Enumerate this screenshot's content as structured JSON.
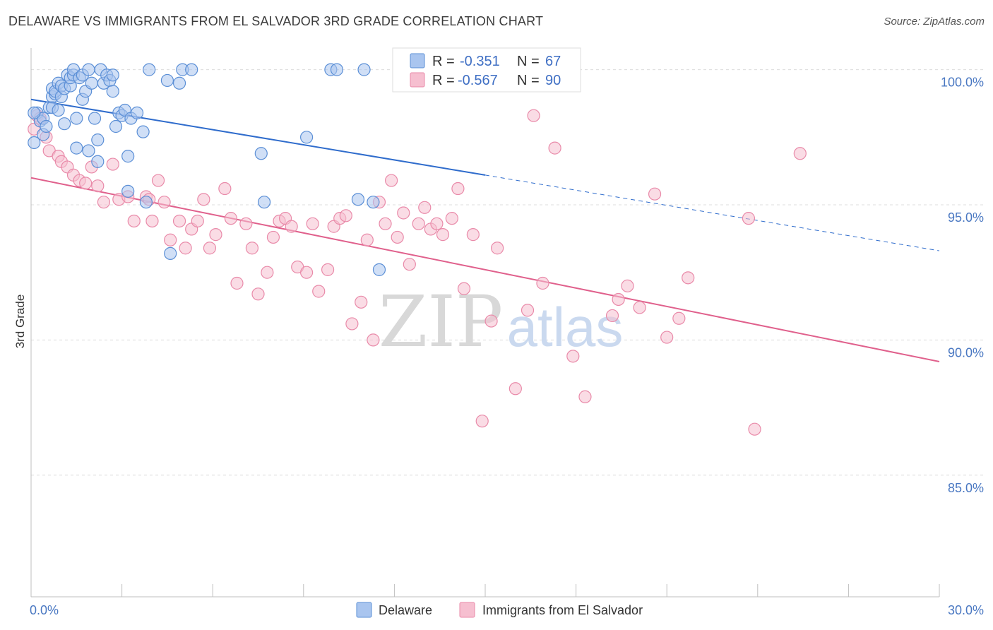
{
  "title": "DELAWARE VS IMMIGRANTS FROM EL SALVADOR 3RD GRADE CORRELATION CHART",
  "source": "Source: ZipAtlas.com",
  "watermark": {
    "zip": "ZIP",
    "atlas": "atlas"
  },
  "colors": {
    "blue_fill": "#a9c5ef",
    "blue_stroke": "#5b8fd6",
    "blue_line": "#2f6ccc",
    "pink_fill": "#f6bfd0",
    "pink_stroke": "#e98aa9",
    "pink_line": "#e0608c",
    "tick_text": "#4a78c2",
    "grid": "#dcdcdc"
  },
  "legend": {
    "rows": [
      {
        "r_label": "R =",
        "r_value": "-0.351",
        "n_label": "N =",
        "n_value": "67"
      },
      {
        "r_label": "R =",
        "r_value": "-0.567",
        "n_label": "N =",
        "n_value": "90"
      }
    ]
  },
  "chart_data": {
    "type": "scatter",
    "title": "DELAWARE VS IMMIGRANTS FROM EL SALVADOR 3RD GRADE CORRELATION CHART",
    "xlabel": "",
    "ylabel": "3rd Grade",
    "xlim": [
      0,
      30
    ],
    "ylim": [
      80.5,
      100.8
    ],
    "x_tick_labels": [
      "0.0%",
      "30.0%"
    ],
    "y_ticks": [
      100,
      95,
      90,
      85
    ],
    "y_tick_labels": [
      "100.0%",
      "95.0%",
      "90.0%",
      "85.0%"
    ],
    "grid": true,
    "legend_position": "top-center",
    "series": [
      {
        "name": "Delaware",
        "color": "#a9c5ef",
        "trend": {
          "x": [
            0,
            15
          ],
          "y": [
            98.9,
            96.1
          ],
          "dashed_to": [
            30,
            93.3
          ]
        },
        "points": [
          [
            0.1,
            97.3
          ],
          [
            0.2,
            98.4
          ],
          [
            0.3,
            98.1
          ],
          [
            0.4,
            97.6
          ],
          [
            0.4,
            98.2
          ],
          [
            0.5,
            97.9
          ],
          [
            0.6,
            98.6
          ],
          [
            0.7,
            98.6
          ],
          [
            0.7,
            99.0
          ],
          [
            0.7,
            99.3
          ],
          [
            0.8,
            99.1
          ],
          [
            0.8,
            99.2
          ],
          [
            0.9,
            98.5
          ],
          [
            0.9,
            99.5
          ],
          [
            1.0,
            99.0
          ],
          [
            1.0,
            99.4
          ],
          [
            1.1,
            98.0
          ],
          [
            1.1,
            99.3
          ],
          [
            1.2,
            99.8
          ],
          [
            1.3,
            99.4
          ],
          [
            1.3,
            99.7
          ],
          [
            1.4,
            99.8
          ],
          [
            1.4,
            100.0
          ],
          [
            1.5,
            98.2
          ],
          [
            1.5,
            97.1
          ],
          [
            1.6,
            99.7
          ],
          [
            1.7,
            98.9
          ],
          [
            1.7,
            99.8
          ],
          [
            1.8,
            99.2
          ],
          [
            1.9,
            100.0
          ],
          [
            1.9,
            97.0
          ],
          [
            2.0,
            99.5
          ],
          [
            2.1,
            98.2
          ],
          [
            2.2,
            96.6
          ],
          [
            2.2,
            97.4
          ],
          [
            2.3,
            100.0
          ],
          [
            2.4,
            99.5
          ],
          [
            2.5,
            99.8
          ],
          [
            2.6,
            99.6
          ],
          [
            2.7,
            99.8
          ],
          [
            2.7,
            99.2
          ],
          [
            2.8,
            97.9
          ],
          [
            2.9,
            98.4
          ],
          [
            3.0,
            98.3
          ],
          [
            3.1,
            98.5
          ],
          [
            3.2,
            96.8
          ],
          [
            3.3,
            98.2
          ],
          [
            3.5,
            98.4
          ],
          [
            3.7,
            97.7
          ],
          [
            3.8,
            95.1
          ],
          [
            3.9,
            100.0
          ],
          [
            4.5,
            99.6
          ],
          [
            4.6,
            93.2
          ],
          [
            4.9,
            99.5
          ],
          [
            5.0,
            100.0
          ],
          [
            5.3,
            100.0
          ],
          [
            7.6,
            96.9
          ],
          [
            7.7,
            95.1
          ],
          [
            9.1,
            97.5
          ],
          [
            9.9,
            100.0
          ],
          [
            10.1,
            100.0
          ],
          [
            10.8,
            95.2
          ],
          [
            11.0,
            100.0
          ],
          [
            11.3,
            95.1
          ],
          [
            11.5,
            92.6
          ],
          [
            3.2,
            95.5
          ],
          [
            0.1,
            98.4
          ]
        ]
      },
      {
        "name": "Immigrants from El Salvador",
        "color": "#f6bfd0",
        "trend": {
          "x": [
            0,
            30
          ],
          "y": [
            96.0,
            89.2
          ]
        },
        "points": [
          [
            0.1,
            97.8
          ],
          [
            0.2,
            98.3
          ],
          [
            0.3,
            98.2
          ],
          [
            0.5,
            97.5
          ],
          [
            0.6,
            97.0
          ],
          [
            0.9,
            96.8
          ],
          [
            1.0,
            96.6
          ],
          [
            1.2,
            96.4
          ],
          [
            1.4,
            96.1
          ],
          [
            1.6,
            95.9
          ],
          [
            1.8,
            95.8
          ],
          [
            2.0,
            96.4
          ],
          [
            2.2,
            95.7
          ],
          [
            2.4,
            95.1
          ],
          [
            2.7,
            96.5
          ],
          [
            2.9,
            95.2
          ],
          [
            3.2,
            95.3
          ],
          [
            3.4,
            94.4
          ],
          [
            3.8,
            95.3
          ],
          [
            3.9,
            95.2
          ],
          [
            4.0,
            94.4
          ],
          [
            4.2,
            95.9
          ],
          [
            4.4,
            95.1
          ],
          [
            4.6,
            93.7
          ],
          [
            4.9,
            94.4
          ],
          [
            5.1,
            93.4
          ],
          [
            5.3,
            94.1
          ],
          [
            5.5,
            94.4
          ],
          [
            5.7,
            95.2
          ],
          [
            5.9,
            93.4
          ],
          [
            6.1,
            93.9
          ],
          [
            6.4,
            95.6
          ],
          [
            6.6,
            94.5
          ],
          [
            6.8,
            92.1
          ],
          [
            7.1,
            94.3
          ],
          [
            7.3,
            93.4
          ],
          [
            7.5,
            91.7
          ],
          [
            7.8,
            92.5
          ],
          [
            8.0,
            93.8
          ],
          [
            8.2,
            94.4
          ],
          [
            8.4,
            94.5
          ],
          [
            8.6,
            94.2
          ],
          [
            8.8,
            92.7
          ],
          [
            9.1,
            92.5
          ],
          [
            9.3,
            94.3
          ],
          [
            9.5,
            91.8
          ],
          [
            9.8,
            92.6
          ],
          [
            10.0,
            94.2
          ],
          [
            10.2,
            94.5
          ],
          [
            10.4,
            94.6
          ],
          [
            10.6,
            90.6
          ],
          [
            10.9,
            91.4
          ],
          [
            11.1,
            93.7
          ],
          [
            11.3,
            90.0
          ],
          [
            11.5,
            95.1
          ],
          [
            11.7,
            94.3
          ],
          [
            11.9,
            95.9
          ],
          [
            12.1,
            93.8
          ],
          [
            12.3,
            94.7
          ],
          [
            12.5,
            92.8
          ],
          [
            12.8,
            94.3
          ],
          [
            13.0,
            94.9
          ],
          [
            13.2,
            94.1
          ],
          [
            13.4,
            94.3
          ],
          [
            13.6,
            93.9
          ],
          [
            13.9,
            94.5
          ],
          [
            14.1,
            95.6
          ],
          [
            14.3,
            91.9
          ],
          [
            14.6,
            93.9
          ],
          [
            14.9,
            87.0
          ],
          [
            15.2,
            90.7
          ],
          [
            15.4,
            93.4
          ],
          [
            16.0,
            88.2
          ],
          [
            16.4,
            91.1
          ],
          [
            16.6,
            98.3
          ],
          [
            16.9,
            92.1
          ],
          [
            17.3,
            97.1
          ],
          [
            17.9,
            89.4
          ],
          [
            18.3,
            87.9
          ],
          [
            19.2,
            90.9
          ],
          [
            19.4,
            91.5
          ],
          [
            19.7,
            92.0
          ],
          [
            20.1,
            91.2
          ],
          [
            20.6,
            95.4
          ],
          [
            21.0,
            90.1
          ],
          [
            21.4,
            90.8
          ],
          [
            21.7,
            92.3
          ],
          [
            23.7,
            94.5
          ],
          [
            23.9,
            86.7
          ],
          [
            25.4,
            96.9
          ]
        ]
      }
    ]
  },
  "bottom_legend": [
    {
      "label": "Delaware"
    },
    {
      "label": "Immigrants from El Salvador"
    }
  ]
}
